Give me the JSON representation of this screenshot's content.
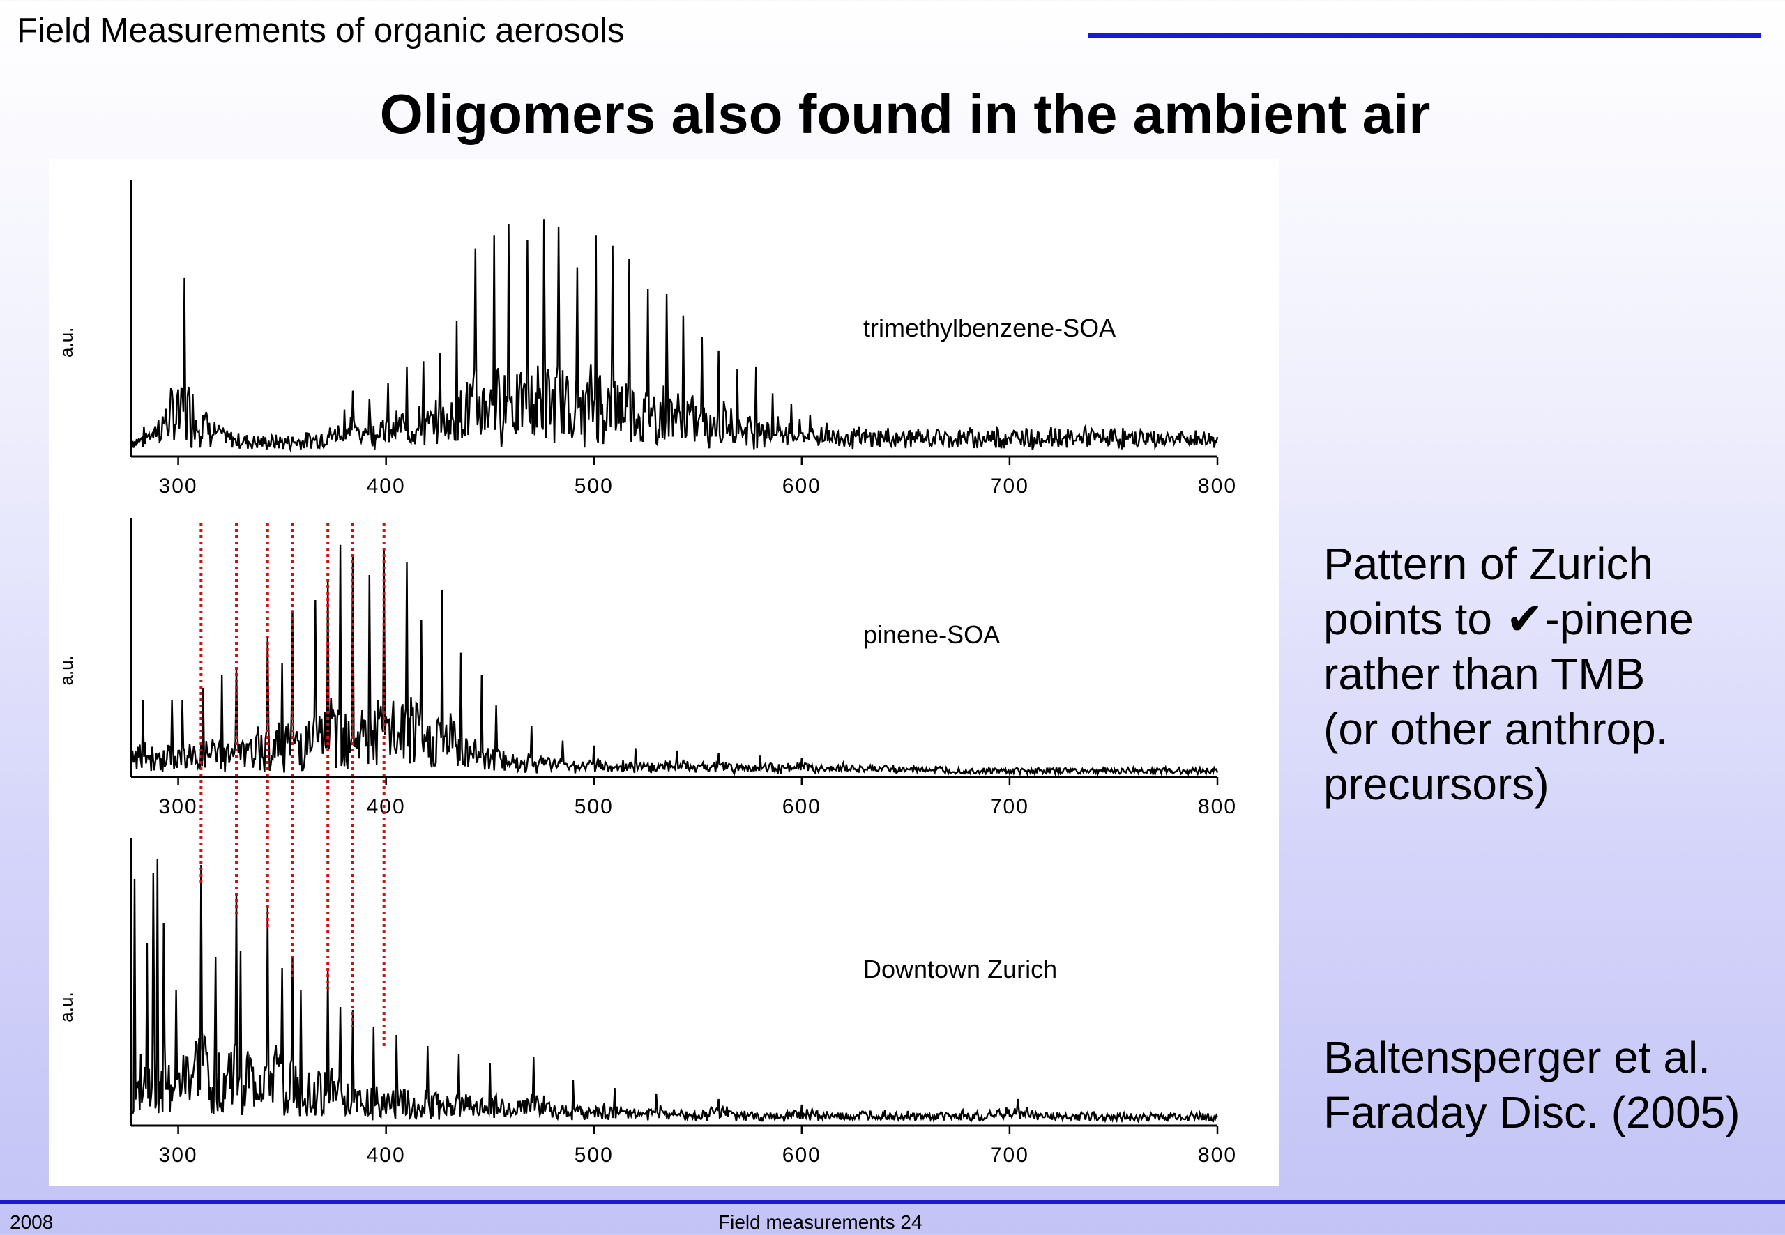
{
  "header": {
    "left": "Field Measurements of organic aerosols"
  },
  "title": "Oligomers also found in the ambient air",
  "side_text": {
    "p1_line1": "Pattern of Zurich",
    "p1_line2_before": "points to",
    "p1_line2_symbol": "✔",
    "p1_line2_after": "-pinene",
    "p1_line3": "rather than TMB",
    "p1_line4": "(or other anthrop.",
    "p1_line5": "precursors)",
    "p2_line1": "Baltensperger et al.",
    "p2_line2": "Faraday Disc. (2005)"
  },
  "footer": {
    "left": "2008",
    "center": "Field measurements 24"
  },
  "colors": {
    "rule": "#1a1ad0",
    "marker": "#cc1111",
    "trace": "#000000"
  },
  "chart_data": [
    {
      "type": "line",
      "title": "trimethylbenzene-SOA",
      "ylabel": "a.u.",
      "xlim": [
        278,
        800
      ],
      "xticks": [
        300,
        400,
        500,
        600,
        700,
        800
      ],
      "series": [
        {
          "peaks": [
            [
              303,
              0.66
            ],
            [
              312,
              0.15
            ],
            [
              380,
              0.17
            ],
            [
              384,
              0.24
            ],
            [
              392,
              0.21
            ],
            [
              401,
              0.27
            ],
            [
              410,
              0.33
            ],
            [
              418,
              0.35
            ],
            [
              426,
              0.38
            ],
            [
              434,
              0.5
            ],
            [
              443,
              0.77
            ],
            [
              452,
              0.82
            ],
            [
              459,
              0.86
            ],
            [
              468,
              0.8
            ],
            [
              476,
              0.88
            ],
            [
              483,
              0.85
            ],
            [
              492,
              0.7
            ],
            [
              501,
              0.82
            ],
            [
              509,
              0.78
            ],
            [
              517,
              0.73
            ],
            [
              526,
              0.62
            ],
            [
              535,
              0.6
            ],
            [
              543,
              0.52
            ],
            [
              552,
              0.44
            ],
            [
              560,
              0.39
            ],
            [
              569,
              0.32
            ],
            [
              578,
              0.33
            ],
            [
              586,
              0.23
            ],
            [
              595,
              0.19
            ],
            [
              604,
              0.15
            ],
            [
              612,
              0.12
            ],
            [
              625,
              0.1
            ],
            [
              638,
              0.09
            ],
            [
              652,
              0.09
            ],
            [
              666,
              0.09
            ],
            [
              680,
              0.09
            ],
            [
              694,
              0.1
            ],
            [
              708,
              0.1
            ],
            [
              722,
              0.1
            ],
            [
              736,
              0.1
            ],
            [
              750,
              0.09
            ],
            [
              764,
              0.08
            ],
            [
              778,
              0.07
            ],
            [
              792,
              0.06
            ]
          ]
        }
      ]
    },
    {
      "type": "line",
      "title": "pinene-SOA",
      "ylabel": "a.u.",
      "xlim": [
        278,
        800
      ],
      "xticks": [
        300,
        400,
        500,
        600,
        700,
        800
      ],
      "marker_x": [
        311,
        328,
        343,
        355,
        372,
        384,
        399
      ],
      "series": [
        {
          "peaks": [
            [
              283,
              0.3
            ],
            [
              297,
              0.3
            ],
            [
              302,
              0.3
            ],
            [
              312,
              0.35
            ],
            [
              321,
              0.4
            ],
            [
              328,
              0.42
            ],
            [
              343,
              0.55
            ],
            [
              350,
              0.45
            ],
            [
              355,
              0.66
            ],
            [
              366,
              0.7
            ],
            [
              372,
              0.78
            ],
            [
              378,
              0.92
            ],
            [
              384,
              0.88
            ],
            [
              392,
              0.8
            ],
            [
              399,
              0.9
            ],
            [
              410,
              0.85
            ],
            [
              417,
              0.62
            ],
            [
              427,
              0.74
            ],
            [
              436,
              0.49
            ],
            [
              446,
              0.4
            ],
            [
              453,
              0.28
            ],
            [
              470,
              0.2
            ],
            [
              485,
              0.14
            ],
            [
              500,
              0.12
            ],
            [
              520,
              0.11
            ],
            [
              540,
              0.1
            ],
            [
              560,
              0.09
            ],
            [
              580,
              0.08
            ],
            [
              600,
              0.07
            ],
            [
              620,
              0.05
            ],
            [
              640,
              0.04
            ],
            [
              660,
              0.03
            ]
          ]
        }
      ]
    },
    {
      "type": "line",
      "title": "Downtown Zurich",
      "ylabel": "a.u.",
      "xlim": [
        278,
        800
      ],
      "xticks": [
        300,
        400,
        500,
        600,
        700,
        800
      ],
      "series": [
        {
          "peaks": [
            [
              279,
              0.88
            ],
            [
              285,
              0.65
            ],
            [
              288,
              0.9
            ],
            [
              290,
              0.95
            ],
            [
              293,
              0.72
            ],
            [
              299,
              0.48
            ],
            [
              311,
              0.93
            ],
            [
              318,
              0.6
            ],
            [
              328,
              0.83
            ],
            [
              330,
              0.62
            ],
            [
              343,
              0.78
            ],
            [
              350,
              0.56
            ],
            [
              355,
              0.6
            ],
            [
              359,
              0.48
            ],
            [
              372,
              0.56
            ],
            [
              378,
              0.42
            ],
            [
              384,
              0.41
            ],
            [
              394,
              0.35
            ],
            [
              405,
              0.32
            ],
            [
              420,
              0.28
            ],
            [
              435,
              0.25
            ],
            [
              450,
              0.22
            ],
            [
              471,
              0.24
            ],
            [
              490,
              0.16
            ],
            [
              510,
              0.13
            ],
            [
              530,
              0.11
            ],
            [
              560,
              0.09
            ],
            [
              600,
              0.07
            ],
            [
              640,
              0.05
            ],
            [
              680,
              0.04
            ],
            [
              704,
              0.09
            ],
            [
              740,
              0.03
            ],
            [
              780,
              0.02
            ]
          ]
        }
      ]
    }
  ]
}
